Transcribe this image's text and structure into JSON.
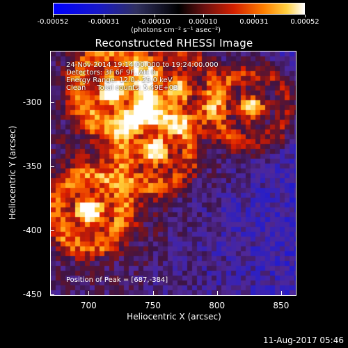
{
  "chart_data": {
    "type": "heatmap",
    "title": "Reconstructed RHESSI Image",
    "xlabel": "Heliocentric X (arcsec)",
    "ylabel": "Heliocentric Y (arcsec)",
    "xlim": [
      670,
      862
    ],
    "ylim": [
      -451,
      -260
    ],
    "xticks": [
      "700",
      "750",
      "800",
      "850"
    ],
    "yticks": [
      "-300",
      "-350",
      "-400",
      "-450"
    ],
    "colorbar": {
      "ticks": [
        "-0.00052",
        "-0.00031",
        "-0.00010",
        "0.00010",
        "0.00031",
        "0.00052"
      ],
      "units": "(photons cm⁻² s⁻¹ asec⁻²)",
      "range": [
        -0.00052,
        0.00052
      ],
      "colors": [
        "#0000ff",
        "#000000",
        "#ff0000",
        "#ffff00",
        "#ffffff"
      ]
    },
    "annotations": {
      "line1": "24-Nov-2014 19:14:00.000 to 19:24:00.000",
      "line2": "Detectors: 3F 6F 9F, Att 0",
      "line3": "Energy Range: 12.0 - 25.0 keV",
      "line4": "Clean     Total counts: 5.49E+03",
      "peak": "Position of Peak = [687,-384]"
    },
    "sources": [
      {
        "x": 718,
        "y": -290,
        "intensity": 0.00052
      },
      {
        "x": 700,
        "y": -385,
        "intensity": 0.0005
      },
      {
        "x": 752,
        "y": -338,
        "intensity": 0.0004
      },
      {
        "x": 828,
        "y": -304,
        "intensity": 0.00042
      },
      {
        "x": 770,
        "y": -290,
        "intensity": 0.0003
      }
    ]
  },
  "footer": {
    "timestamp": "11-Aug-2017 05:46"
  }
}
